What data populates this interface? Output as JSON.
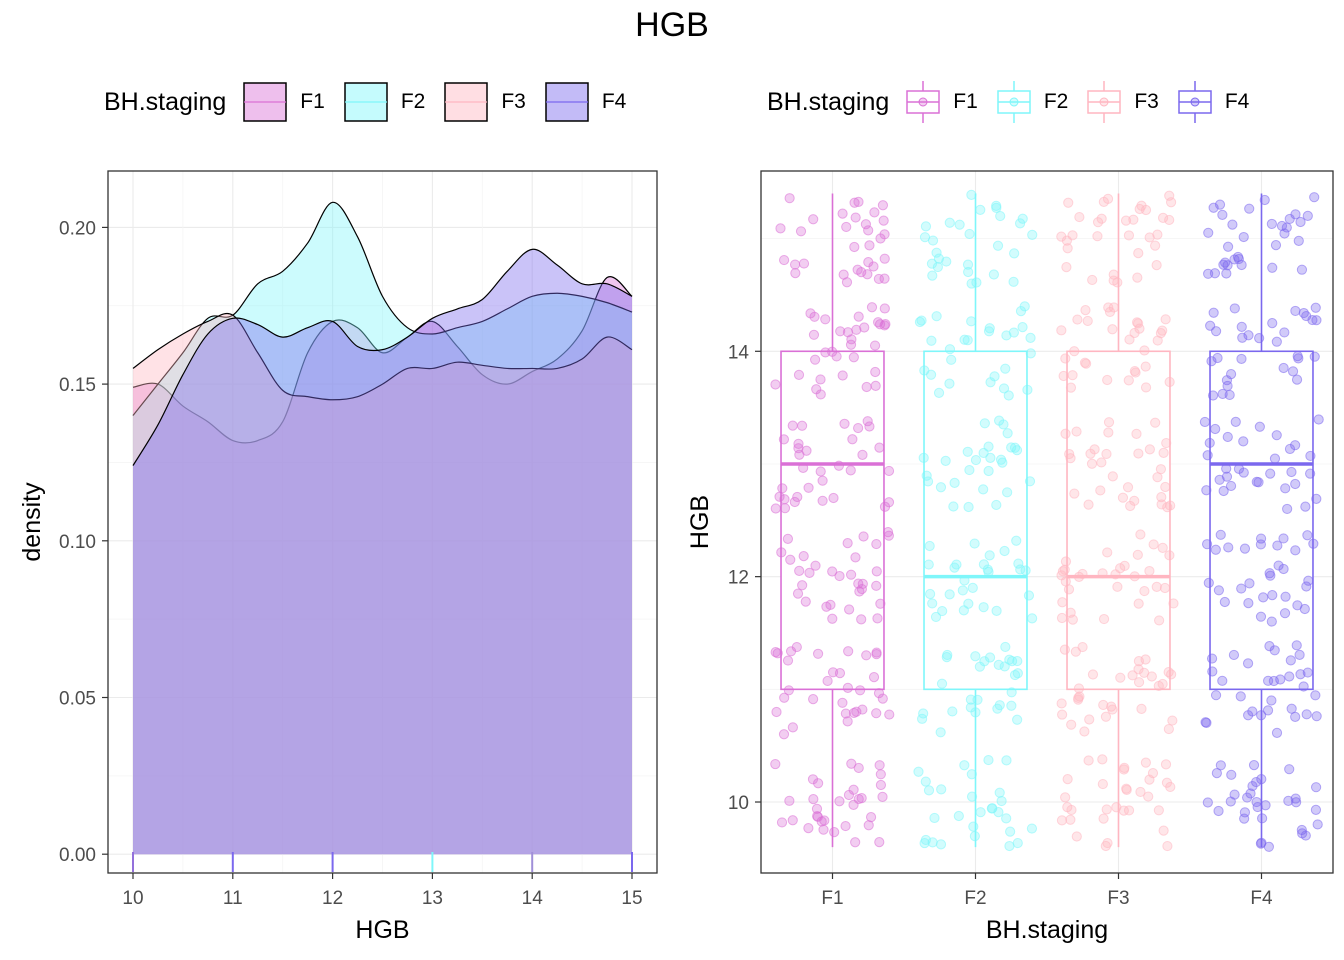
{
  "title": "HGB",
  "colors": {
    "F1": "#DA70D6",
    "F2": "#7FF6FA",
    "F3": "#FFB6C1",
    "F4": "#7B68EE"
  },
  "left_legend": {
    "title": "BH.staging",
    "items": [
      "F1",
      "F2",
      "F3",
      "F4"
    ]
  },
  "right_legend": {
    "title": "BH.staging",
    "items": [
      "F1",
      "F2",
      "F3",
      "F4"
    ]
  },
  "chart_data": [
    {
      "type": "area",
      "chart": "density",
      "xlabel": "HGB",
      "ylabel": "density",
      "xlim": [
        10,
        15
      ],
      "ylim": [
        -0.006,
        0.218
      ],
      "xticks": [
        10,
        11,
        12,
        13,
        14,
        15
      ],
      "yticks": [
        0.0,
        0.05,
        0.1,
        0.15,
        0.2
      ],
      "ytick_labels": [
        "0.00",
        "0.05",
        "0.10",
        "0.15",
        "0.20"
      ],
      "grid": true,
      "legend": "top",
      "x": [
        10.0,
        10.25,
        10.5,
        10.75,
        11.0,
        11.25,
        11.5,
        11.75,
        12.0,
        12.25,
        12.5,
        12.75,
        13.0,
        13.25,
        13.5,
        13.75,
        14.0,
        14.25,
        14.5,
        14.75,
        15.0
      ],
      "series": [
        {
          "name": "F1",
          "values": [
            0.149,
            0.15,
            0.143,
            0.138,
            0.132,
            0.132,
            0.138,
            0.16,
            0.17,
            0.168,
            0.16,
            0.165,
            0.17,
            0.162,
            0.153,
            0.15,
            0.154,
            0.158,
            0.167,
            0.184,
            0.178
          ]
        },
        {
          "name": "F2",
          "values": [
            0.14,
            0.15,
            0.16,
            0.171,
            0.172,
            0.182,
            0.186,
            0.195,
            0.208,
            0.197,
            0.178,
            0.168,
            0.166,
            0.168,
            0.17,
            0.174,
            0.178,
            0.179,
            0.178,
            0.176,
            0.173
          ]
        },
        {
          "name": "F3",
          "values": [
            0.155,
            0.161,
            0.166,
            0.17,
            0.172,
            0.16,
            0.148,
            0.146,
            0.145,
            0.146,
            0.15,
            0.155,
            0.155,
            0.157,
            0.156,
            0.155,
            0.155,
            0.155,
            0.158,
            0.165,
            0.161
          ]
        },
        {
          "name": "F4",
          "values": [
            0.124,
            0.137,
            0.153,
            0.166,
            0.171,
            0.169,
            0.165,
            0.168,
            0.17,
            0.162,
            0.161,
            0.165,
            0.171,
            0.174,
            0.177,
            0.186,
            0.193,
            0.188,
            0.182,
            0.182,
            0.178
          ]
        }
      ],
      "rug": [
        10,
        11,
        12,
        13,
        14,
        15
      ]
    },
    {
      "type": "box",
      "chart": "boxplot with jitter",
      "xlabel": "BH.staging",
      "ylabel": "HGB",
      "categories": [
        "F1",
        "F2",
        "F3",
        "F4"
      ],
      "ylim": [
        9.37,
        15.6
      ],
      "yticks": [
        10,
        12,
        14
      ],
      "grid": true,
      "legend": "top",
      "boxes": [
        {
          "name": "F1",
          "min": 9.6,
          "q1": 11,
          "median": 13,
          "q3": 14,
          "max": 15.4
        },
        {
          "name": "F2",
          "min": 9.6,
          "q1": 11,
          "median": 12,
          "q3": 14,
          "max": 15.4
        },
        {
          "name": "F3",
          "min": 9.6,
          "q1": 11,
          "median": 12,
          "q3": 14,
          "max": 15.4
        },
        {
          "name": "F4",
          "min": 9.6,
          "q1": 11,
          "median": 13,
          "q3": 14,
          "max": 15.4
        }
      ],
      "jitter_levels": [
        10,
        11,
        12,
        13,
        14,
        15
      ],
      "jitter_spread": 0.4
    }
  ]
}
